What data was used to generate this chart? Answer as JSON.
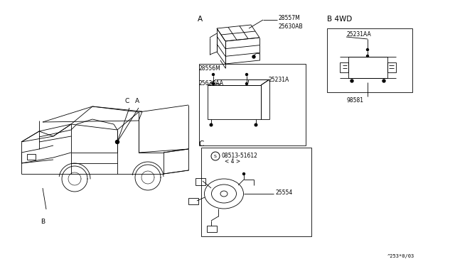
{
  "bg_color": "#ffffff",
  "fig_width": 6.4,
  "fig_height": 3.72,
  "title_A": "A",
  "title_B4WD": "B 4WD",
  "title_C": "C",
  "label_B": "B",
  "label_C_car": "C",
  "label_A_car": "A",
  "part_28557M": "28557M",
  "part_25630AB": "25630AB",
  "part_28556M": "28556M",
  "part_25231A": "25231A",
  "part_25630AA": "25630AA",
  "part_25231AA": "25231AA",
  "part_98581": "98581",
  "part_08513": "08513-51612",
  "part_08513_sub": "< 4 >",
  "part_25554": "25554",
  "footer": "^253*0/03"
}
